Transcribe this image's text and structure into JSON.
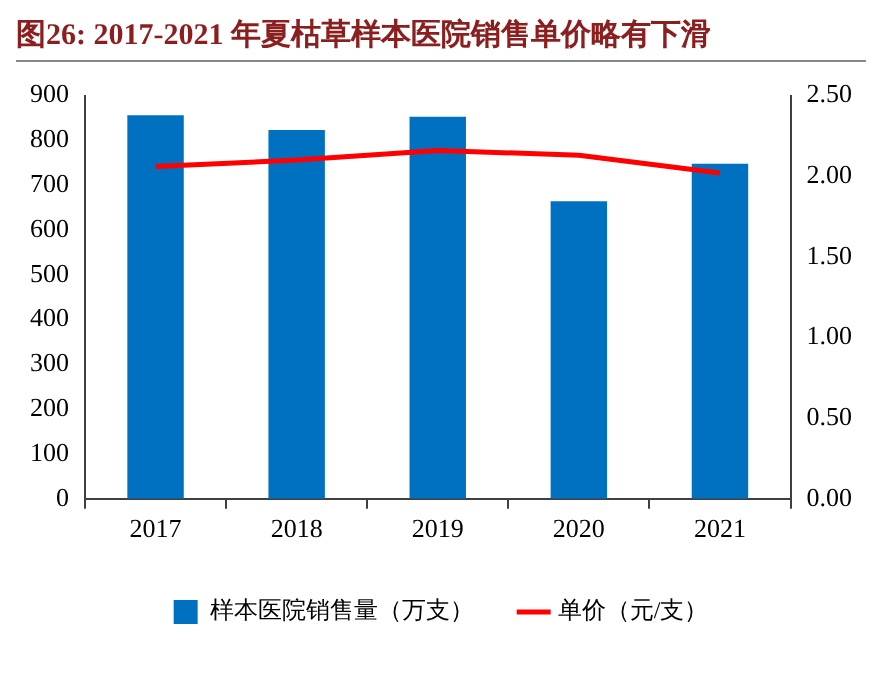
{
  "chart_data": {
    "type": "bar",
    "title": "图26:  2017-2021 年夏枯草样本医院销售单价略有下滑",
    "categories": [
      "2017",
      "2018",
      "2019",
      "2020",
      "2021"
    ],
    "series": [
      {
        "name": "样本医院销售量（万支）",
        "color": "#0070c0",
        "values": [
          856,
          823,
          853,
          664,
          748
        ]
      },
      {
        "name": "单价（元/支）",
        "type": "line",
        "axis": "y2",
        "color": "#ff0000",
        "values": [
          2.06,
          2.1,
          2.16,
          2.13,
          2.02
        ],
        "marker": "none"
      }
    ],
    "ylim": [
      0,
      900
    ],
    "yticks": [
      0,
      100,
      200,
      300,
      400,
      500,
      600,
      700,
      800,
      900
    ],
    "y2lim": [
      0,
      2.5
    ],
    "y2ticks": [
      {
        "value": 0,
        "label": "0.00"
      },
      {
        "value": 0.5,
        "label": "0.50"
      },
      {
        "value": 1,
        "label": "1.00"
      },
      {
        "value": 1.5,
        "label": "1.50"
      },
      {
        "value": 2,
        "label": "2.00"
      },
      {
        "value": 2.5,
        "label": "2.50"
      }
    ],
    "grid": false,
    "legend": "bottom"
  }
}
